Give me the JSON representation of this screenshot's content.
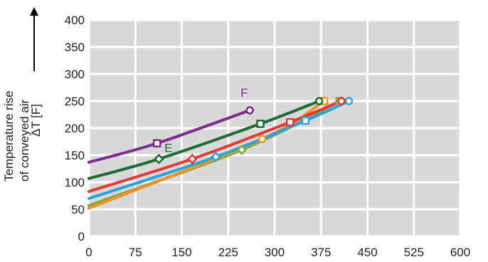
{
  "chart_data": {
    "type": "line",
    "title": "",
    "xlabel": "",
    "ylabel_lines": [
      "Temperature rise",
      "of conveyed air"
    ],
    "ylabel_symbol": "ΔT [F]",
    "xlim": [
      0,
      600
    ],
    "ylim": [
      0,
      400
    ],
    "x_ticks": [
      0,
      75,
      150,
      225,
      300,
      375,
      450,
      525,
      600
    ],
    "y_ticks": [
      0,
      50,
      100,
      150,
      200,
      250,
      300,
      350,
      400
    ],
    "grid": true,
    "plot_background": "#d9d9d9",
    "grid_color": "#ffffff",
    "series": [
      {
        "name": "F",
        "color": "#7b2c8c",
        "x": [
          0,
          110,
          260
        ],
        "y": [
          137,
          172,
          233
        ],
        "markers": [
          {
            "x": 110,
            "y": 172,
            "shape": "square"
          },
          {
            "x": 260,
            "y": 233,
            "shape": "circle"
          }
        ],
        "label": {
          "text": "F",
          "x": 245,
          "y": 258
        }
      },
      {
        "name": "E",
        "color": "#1e6b3a",
        "x": [
          0,
          113,
          277,
          372
        ],
        "y": [
          107,
          143,
          208,
          250
        ],
        "markers": [
          {
            "x": 113,
            "y": 143,
            "shape": "diamond"
          },
          {
            "x": 277,
            "y": 208,
            "shape": "square"
          },
          {
            "x": 372,
            "y": 250,
            "shape": "circle"
          }
        ],
        "label": {
          "text": "E",
          "x": 122,
          "y": 156
        }
      },
      {
        "color": "#e53935",
        "x": [
          0,
          167,
          325,
          408
        ],
        "y": [
          83,
          143,
          211,
          250
        ],
        "markers": [
          {
            "x": 167,
            "y": 143,
            "shape": "diamond"
          },
          {
            "x": 325,
            "y": 211,
            "shape": "square"
          },
          {
            "x": 408,
            "y": 250,
            "shape": "circle"
          }
        ]
      },
      {
        "color": "#27a3dd",
        "x": [
          0,
          205,
          350,
          420
        ],
        "y": [
          70,
          147,
          214,
          250
        ],
        "markers": [
          {
            "x": 205,
            "y": 147,
            "shape": "diamond"
          },
          {
            "x": 350,
            "y": 214,
            "shape": "square"
          },
          {
            "x": 420,
            "y": 250,
            "shape": "circle"
          }
        ]
      },
      {
        "color": "#7cab3c",
        "x": [
          0,
          247,
          405
        ],
        "y": [
          57,
          160,
          250
        ],
        "markers": [
          {
            "x": 247,
            "y": 160,
            "shape": "diamond"
          },
          {
            "x": 405,
            "y": 250,
            "shape": "square"
          }
        ]
      },
      {
        "color": "#f39223",
        "x": [
          0,
          280,
          380
        ],
        "y": [
          52,
          180,
          250
        ],
        "markers": [
          {
            "x": 280,
            "y": 180,
            "shape": "circle"
          },
          {
            "x": 380,
            "y": 250,
            "shape": "square"
          }
        ]
      }
    ]
  }
}
